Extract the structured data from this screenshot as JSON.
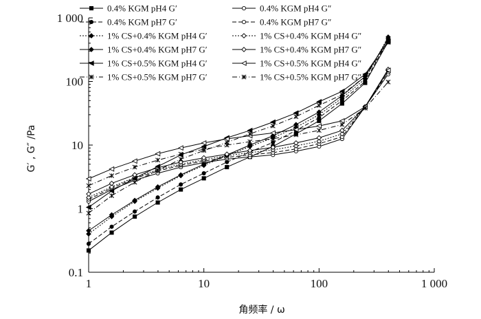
{
  "chart_data": {
    "type": "line",
    "title": "",
    "xlabel": "角频率 / ω",
    "ylabel": "G′ , G″ /Pa",
    "xscale": "log",
    "yscale": "log",
    "xlim": [
      1,
      1000
    ],
    "ylim": [
      0.1,
      1000
    ],
    "grid": false,
    "legend_position": "top",
    "x_tick_labels": [
      "1",
      "10",
      "100",
      "1 000"
    ],
    "y_tick_labels": [
      "0.1",
      "1",
      "10",
      "100",
      "1 000"
    ],
    "x": [
      1,
      1.585,
      2.512,
      3.981,
      6.31,
      10,
      15.85,
      25.12,
      39.81,
      63.1,
      100,
      158.5,
      251.2,
      398.1
    ],
    "series": [
      {
        "name": "0.4% KGM pH4 G′",
        "values": [
          0.22,
          0.42,
          0.75,
          1.25,
          2.0,
          3.0,
          4.5,
          6.5,
          9.5,
          15,
          24,
          45,
          95,
          420
        ]
      },
      {
        "name": "0.4% KGM pH4 G″",
        "values": [
          1.3,
          2.0,
          2.8,
          3.6,
          4.5,
          5.3,
          6.0,
          6.5,
          7.0,
          8.0,
          9.5,
          12.5,
          40,
          130
        ]
      },
      {
        "name": "0.4% KGM pH7 G′",
        "values": [
          0.28,
          0.52,
          0.9,
          1.5,
          2.4,
          3.6,
          5.4,
          7.8,
          11,
          17,
          27,
          50,
          100,
          450
        ]
      },
      {
        "name": "0.4% KGM pH7 G″",
        "values": [
          1.4,
          2.1,
          3.0,
          3.9,
          4.8,
          5.6,
          6.4,
          7.0,
          7.6,
          8.7,
          10.5,
          13.5,
          40,
          140
        ]
      },
      {
        "name": "1% CS+0.4% KGM pH4 G′",
        "values": [
          0.4,
          0.75,
          1.3,
          2.1,
          3.3,
          4.8,
          6.8,
          9.5,
          13,
          19,
          30,
          55,
          110,
          500
        ]
      },
      {
        "name": "1% CS+0.4% KGM pH4 G″",
        "values": [
          1.5,
          2.2,
          3.1,
          4.1,
          5.0,
          5.9,
          6.8,
          7.6,
          8.4,
          9.7,
          11.5,
          15,
          40,
          150
        ]
      },
      {
        "name": "1% CS+0.4% KGM pH7 G′",
        "values": [
          0.45,
          0.8,
          1.35,
          2.2,
          3.4,
          5.0,
          7.0,
          10,
          14,
          21,
          33,
          60,
          120,
          470
        ]
      },
      {
        "name": "1% CS+0.4% KGM pH7 G″",
        "values": [
          1.7,
          2.5,
          3.4,
          4.4,
          5.4,
          6.3,
          7.2,
          8.2,
          9.2,
          10.8,
          13,
          17,
          40,
          155
        ]
      },
      {
        "name": "1% CS+0.5% KGM pH4 G′",
        "values": [
          1.05,
          1.9,
          3.0,
          4.6,
          7.0,
          9.5,
          13,
          17,
          23,
          32,
          48,
          70,
          130,
          430
        ]
      },
      {
        "name": "1% CS+0.5% KGM pH4 G″",
        "values": [
          2.95,
          4.2,
          5.6,
          7.3,
          9.0,
          10.8,
          12.5,
          14,
          15.5,
          17.5,
          20,
          24,
          40,
          150
        ]
      },
      {
        "name": "1% CS+0.5% KGM pH7 G′",
        "values": [
          0.85,
          1.6,
          2.6,
          4.0,
          6.0,
          8.2,
          11,
          15,
          20,
          28,
          42,
          62,
          120,
          410
        ]
      },
      {
        "name": "1% CS+0.5% KGM pH7 G″",
        "values": [
          2.3,
          3.3,
          4.5,
          5.8,
          7.2,
          8.6,
          10,
          11.3,
          12.6,
          14.5,
          17,
          21,
          38,
          98
        ]
      }
    ]
  }
}
